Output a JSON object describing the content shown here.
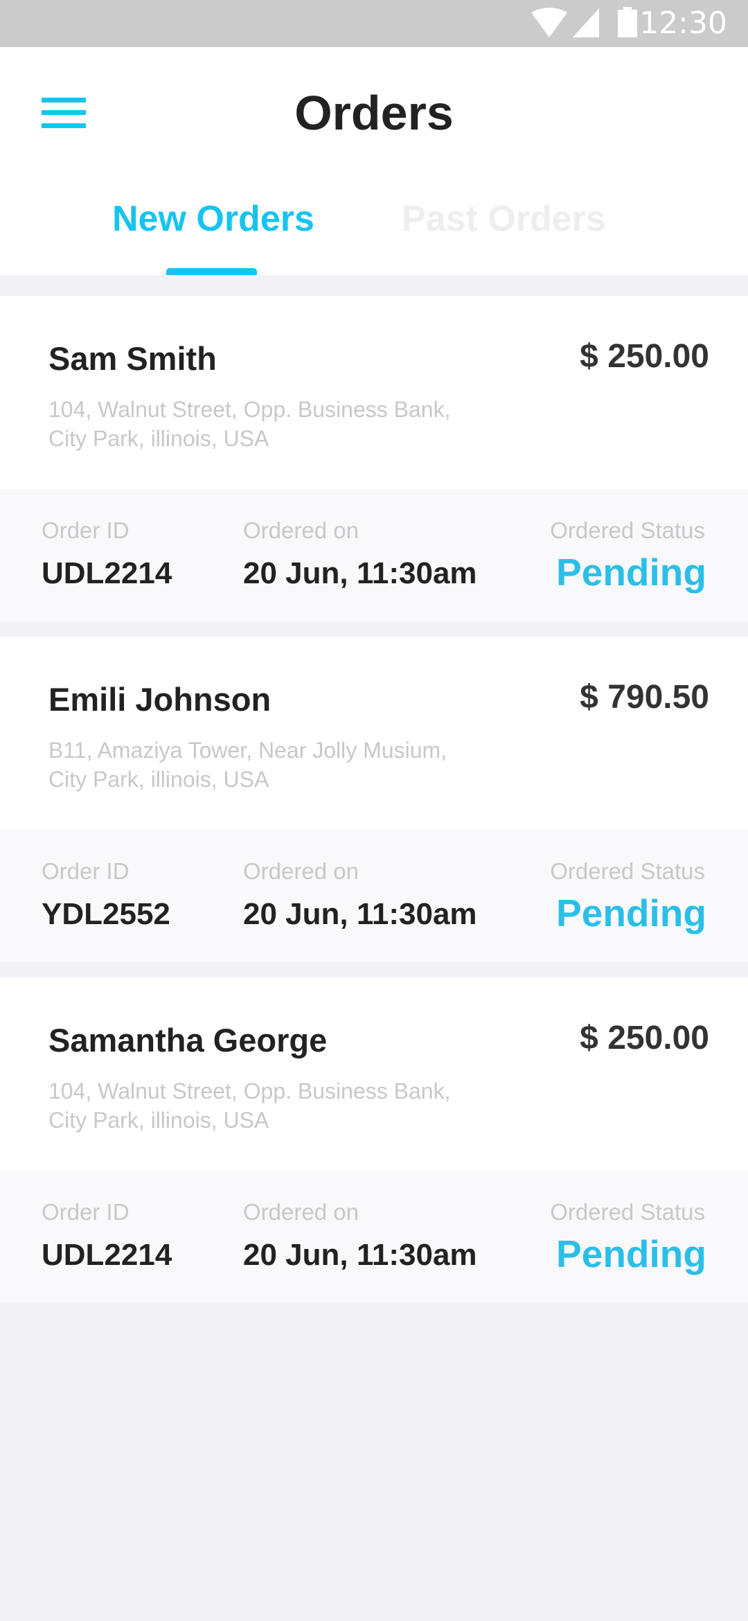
{
  "status_bar": {
    "time": "12:30",
    "icons": [
      "wifi-icon",
      "signal-icon",
      "battery-icon"
    ]
  },
  "header": {
    "title": "Orders",
    "menu_icon": "hamburger-menu-icon"
  },
  "tabs": [
    {
      "label": "New Orders",
      "active": true
    },
    {
      "label": "Past Orders",
      "active": false
    }
  ],
  "colors": {
    "accent": "#17c3ef",
    "status": "#2bbfe8"
  },
  "orders": [
    {
      "name": "Sam Smith",
      "price": "$ 250.00",
      "address_line1": "104, Walnut Street, Opp. Business Bank,",
      "address_line2": "City Park, illinois, USA",
      "order_id_label": "Order ID",
      "order_id": "UDL2214",
      "ordered_on_label": "Ordered on",
      "ordered_on": "20 Jun, 11:30am",
      "status_label": "Ordered Status",
      "status": "Pending"
    },
    {
      "name": "Emili Johnson",
      "price": "$ 790.50",
      "address_line1": "B11, Amaziya Tower,  Near Jolly Musium,",
      "address_line2": "City Park, illinois, USA",
      "order_id_label": "Order ID",
      "order_id": "YDL2552",
      "ordered_on_label": "Ordered on",
      "ordered_on": "20 Jun, 11:30am",
      "status_label": "Ordered Status",
      "status": "Pending"
    },
    {
      "name": "Samantha George",
      "price": "$ 250.00",
      "address_line1": "104, Walnut Street, Opp. Business Bank,",
      "address_line2": "City Park, illinois, USA",
      "order_id_label": "Order ID",
      "order_id": "UDL2214",
      "ordered_on_label": "Ordered on",
      "ordered_on": "20 Jun, 11:30am",
      "status_label": "Ordered Status",
      "status": "Pending"
    }
  ]
}
